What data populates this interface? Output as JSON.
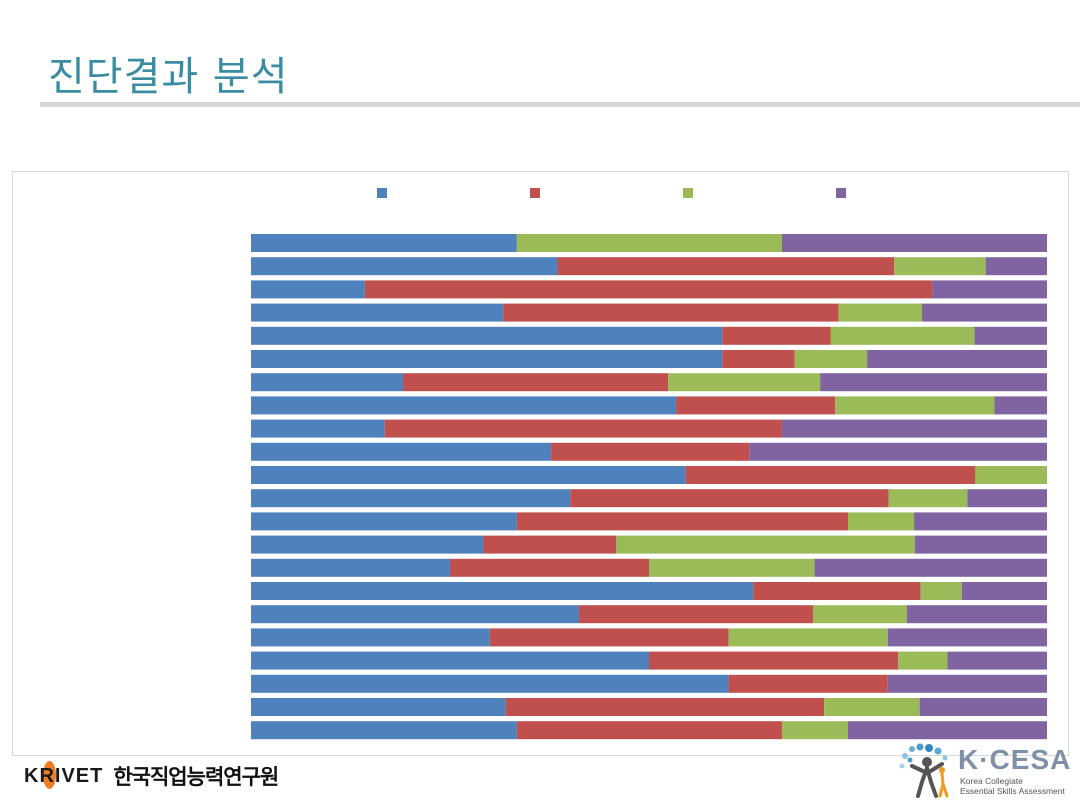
{
  "page": {
    "title": "진단결과 분석"
  },
  "footer": {
    "left_logo_text": "KRIVET",
    "left_org_name": "한국직업능력연구원",
    "right_logo_text": "K·CESA",
    "right_logo_sub1": "Korea Collegiate",
    "right_logo_sub2": "Essential Skills Assessment"
  },
  "chart_data": {
    "type": "bar",
    "orientation": "horizontal",
    "stacked": "percent",
    "title": "",
    "xlabel": "",
    "ylabel": "",
    "legend_position": "top",
    "xlim": [
      0,
      100
    ],
    "grid": false,
    "series": [
      {
        "color": "#4f81bd",
        "values": [
          33.4,
          38.5,
          14.3,
          31.7,
          59.2,
          59.2,
          19.1,
          53.4,
          16.8,
          37.7,
          54.6,
          40.1,
          33.4,
          29.2,
          25.0,
          63.1,
          41.2,
          30.0,
          50.0,
          60.0,
          32.0,
          33.4
        ]
      },
      {
        "color": "#c0504d",
        "values": [
          0.0,
          42.3,
          71.3,
          42.1,
          13.6,
          9.1,
          33.3,
          20.0,
          49.9,
          24.9,
          36.4,
          40.0,
          41.6,
          16.7,
          25.0,
          21.0,
          29.4,
          30.0,
          31.3,
          20.0,
          40.0,
          33.3
        ]
      },
      {
        "color": "#9bbb59",
        "values": [
          33.3,
          11.5,
          0.0,
          10.5,
          18.1,
          9.1,
          19.1,
          20.0,
          0.0,
          0.0,
          9.0,
          9.9,
          8.3,
          37.5,
          20.8,
          5.2,
          11.8,
          20.0,
          6.2,
          0.0,
          12.0,
          8.3
        ]
      },
      {
        "color": "#8064a2",
        "values": [
          33.3,
          7.7,
          14.4,
          15.7,
          9.1,
          22.6,
          28.5,
          6.6,
          33.3,
          37.4,
          0.0,
          10.0,
          16.7,
          16.6,
          29.2,
          10.7,
          17.6,
          20.0,
          12.5,
          20.0,
          16.0,
          25.0
        ]
      }
    ]
  }
}
